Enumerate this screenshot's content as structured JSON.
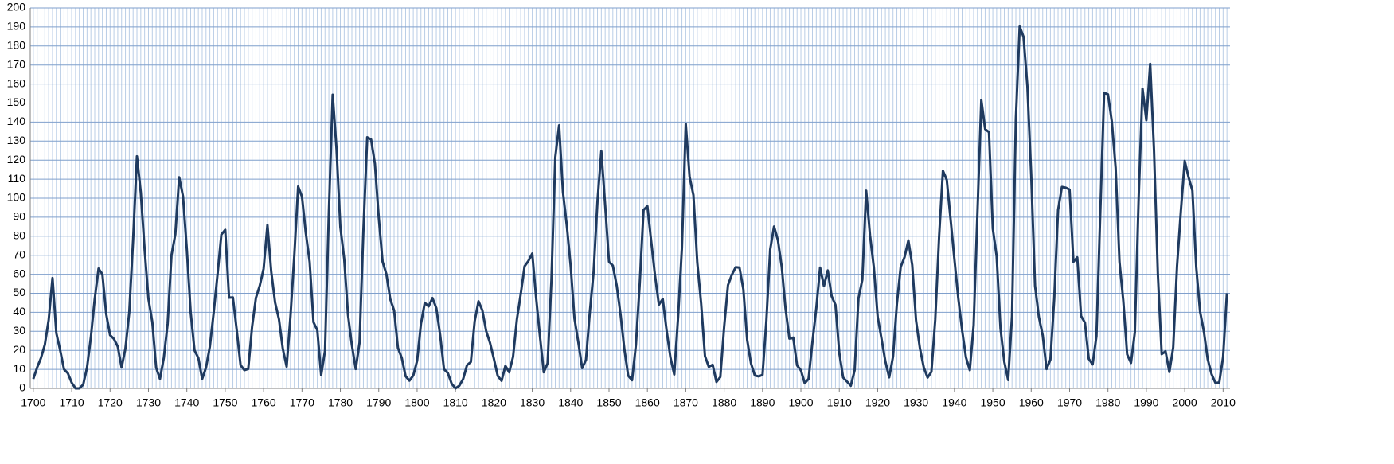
{
  "chart_data": {
    "type": "line",
    "x": [
      1700,
      1701,
      1702,
      1703,
      1704,
      1705,
      1706,
      1707,
      1708,
      1709,
      1710,
      1711,
      1712,
      1713,
      1714,
      1715,
      1716,
      1717,
      1718,
      1719,
      1720,
      1721,
      1722,
      1723,
      1724,
      1725,
      1726,
      1727,
      1728,
      1729,
      1730,
      1731,
      1732,
      1733,
      1734,
      1735,
      1736,
      1737,
      1738,
      1739,
      1740,
      1741,
      1742,
      1743,
      1744,
      1745,
      1746,
      1747,
      1748,
      1749,
      1750,
      1751,
      1752,
      1753,
      1754,
      1755,
      1756,
      1757,
      1758,
      1759,
      1760,
      1761,
      1762,
      1763,
      1764,
      1765,
      1766,
      1767,
      1768,
      1769,
      1770,
      1771,
      1772,
      1773,
      1774,
      1775,
      1776,
      1777,
      1778,
      1779,
      1780,
      1781,
      1782,
      1783,
      1784,
      1785,
      1786,
      1787,
      1788,
      1789,
      1790,
      1791,
      1792,
      1793,
      1794,
      1795,
      1796,
      1797,
      1798,
      1799,
      1800,
      1801,
      1802,
      1803,
      1804,
      1805,
      1806,
      1807,
      1808,
      1809,
      1810,
      1811,
      1812,
      1813,
      1814,
      1815,
      1816,
      1817,
      1818,
      1819,
      1820,
      1821,
      1822,
      1823,
      1824,
      1825,
      1826,
      1827,
      1828,
      1829,
      1830,
      1831,
      1832,
      1833,
      1834,
      1835,
      1836,
      1837,
      1838,
      1839,
      1840,
      1841,
      1842,
      1843,
      1844,
      1845,
      1846,
      1847,
      1848,
      1849,
      1850,
      1851,
      1852,
      1853,
      1854,
      1855,
      1856,
      1857,
      1858,
      1859,
      1860,
      1861,
      1862,
      1863,
      1864,
      1865,
      1866,
      1867,
      1868,
      1869,
      1870,
      1871,
      1872,
      1873,
      1874,
      1875,
      1876,
      1877,
      1878,
      1879,
      1880,
      1881,
      1882,
      1883,
      1884,
      1885,
      1886,
      1887,
      1888,
      1889,
      1890,
      1891,
      1892,
      1893,
      1894,
      1895,
      1896,
      1897,
      1898,
      1899,
      1900,
      1901,
      1902,
      1903,
      1904,
      1905,
      1906,
      1907,
      1908,
      1909,
      1910,
      1911,
      1912,
      1913,
      1914,
      1915,
      1916,
      1917,
      1918,
      1919,
      1920,
      1921,
      1922,
      1923,
      1924,
      1925,
      1926,
      1927,
      1928,
      1929,
      1930,
      1931,
      1932,
      1933,
      1934,
      1935,
      1936,
      1937,
      1938,
      1939,
      1940,
      1941,
      1942,
      1943,
      1944,
      1945,
      1946,
      1947,
      1948,
      1949,
      1950,
      1951,
      1952,
      1953,
      1954,
      1955,
      1956,
      1957,
      1958,
      1959,
      1960,
      1961,
      1962,
      1963,
      1964,
      1965,
      1966,
      1967,
      1968,
      1969,
      1970,
      1971,
      1972,
      1973,
      1974,
      1975,
      1976,
      1977,
      1978,
      1979,
      1980,
      1981,
      1982,
      1983,
      1984,
      1985,
      1986,
      1987,
      1988,
      1989,
      1990,
      1991,
      1992,
      1993,
      1994,
      1995,
      1996,
      1997,
      1998,
      1999,
      2000,
      2001,
      2002,
      2003,
      2004,
      2005,
      2006,
      2007,
      2008,
      2009,
      2010,
      2011
    ],
    "series": [
      {
        "color": "#1f3a5f",
        "values": [
          5,
          11,
          16,
          23,
          36,
          58,
          29,
          20,
          10,
          8,
          3,
          0,
          0,
          2,
          11,
          27,
          47,
          63,
          60,
          39,
          28,
          26,
          22,
          11,
          21,
          40,
          78,
          122,
          103,
          73,
          47,
          35,
          11,
          5,
          16,
          34,
          70,
          81,
          111,
          101,
          73,
          40,
          20,
          16,
          5,
          11,
          22,
          40,
          60,
          80.9,
          83.4,
          47.7,
          47.8,
          30.7,
          12.2,
          9.6,
          10.2,
          32.4,
          47.6,
          54,
          62.9,
          85.9,
          61.2,
          45.1,
          36.4,
          20.9,
          11.4,
          37.8,
          69.8,
          106.1,
          100.8,
          81.6,
          66.5,
          34.8,
          30.6,
          7,
          19.8,
          92.5,
          154.4,
          125.9,
          84.8,
          68.1,
          38.5,
          22.8,
          10.2,
          24.1,
          82.9,
          132,
          130.9,
          118.1,
          89.9,
          66.6,
          60,
          46.9,
          41,
          21.3,
          16,
          6.4,
          4.1,
          6.8,
          14.5,
          34,
          45,
          43.1,
          47.5,
          42.2,
          28.1,
          10.1,
          8.1,
          2.5,
          0,
          1.4,
          5,
          12.2,
          13.9,
          35.4,
          45.8,
          41,
          30.1,
          23.9,
          15.6,
          6.6,
          4,
          11.8,
          8.5,
          16.6,
          36.3,
          49.6,
          64.2,
          67,
          70.9,
          47.8,
          27.5,
          8.5,
          13.2,
          56.9,
          121.5,
          138.3,
          103.2,
          85.7,
          64.6,
          36.7,
          24.2,
          10.7,
          15,
          40.1,
          61.5,
          98.5,
          124.7,
          96.3,
          66.6,
          64.5,
          54.1,
          39,
          20.6,
          6.7,
          4.3,
          22.7,
          54.8,
          93.8,
          95.8,
          77.2,
          59.1,
          44,
          47,
          30.5,
          16.3,
          7.3,
          37.6,
          74,
          139,
          111.2,
          101.6,
          66.2,
          44.7,
          17,
          11.3,
          12.4,
          3.4,
          6,
          32.3,
          54.3,
          59.7,
          63.7,
          63.5,
          52.2,
          25.4,
          13.1,
          6.8,
          6.3,
          7.1,
          35.6,
          73,
          85.1,
          78,
          64,
          41.8,
          26.2,
          26.7,
          12.1,
          9.5,
          2.7,
          5,
          24.4,
          42,
          63.5,
          53.8,
          62,
          48.5,
          43.9,
          18.6,
          5.7,
          3.6,
          1.4,
          9.6,
          47.4,
          57.1,
          103.9,
          80.6,
          63.6,
          37.6,
          26.1,
          14.2,
          5.8,
          16.7,
          44.3,
          63.9,
          69,
          77.8,
          64.9,
          35.7,
          21.2,
          11.1,
          5.7,
          8.7,
          36.1,
          79.7,
          114.4,
          109.6,
          88.8,
          67.8,
          47.5,
          30.6,
          16.3,
          9.6,
          33.2,
          92.6,
          151.6,
          136.3,
          134.7,
          83.9,
          69.4,
          31.5,
          13.9,
          4.4,
          38,
          141.7,
          190.2,
          184.8,
          159,
          112.3,
          53.9,
          37.6,
          27.9,
          10.2,
          15.1,
          47,
          93.8,
          105.9,
          105.5,
          104.5,
          66.6,
          68.9,
          38,
          34.5,
          15.5,
          12.6,
          27.5,
          92.5,
          155.4,
          154.6,
          140.4,
          115.9,
          66.6,
          45.9,
          17.9,
          13.4,
          29.4,
          100.2,
          157.6,
          141,
          170.6,
          125,
          60,
          18,
          19.5,
          8.6,
          21.5,
          64.3,
          93.3,
          119.6,
          111,
          104,
          63.7,
          40.4,
          29.8,
          15.2,
          7.5,
          2.9,
          3.1,
          16.5,
          50
        ]
      }
    ],
    "xlim": [
      1699.2,
      2011.8
    ],
    "xticks": [
      1700,
      1710,
      1720,
      1730,
      1740,
      1750,
      1760,
      1770,
      1780,
      1790,
      1800,
      1810,
      1820,
      1830,
      1840,
      1850,
      1860,
      1870,
      1880,
      1890,
      1900,
      1910,
      1920,
      1930,
      1940,
      1950,
      1960,
      1970,
      1980,
      1990,
      2000,
      2010
    ],
    "ylim": [
      0,
      200
    ],
    "yticks": [
      0,
      10,
      20,
      30,
      40,
      50,
      60,
      70,
      80,
      90,
      100,
      110,
      120,
      130,
      140,
      150,
      160,
      170,
      180,
      190,
      200
    ],
    "grid": true
  }
}
